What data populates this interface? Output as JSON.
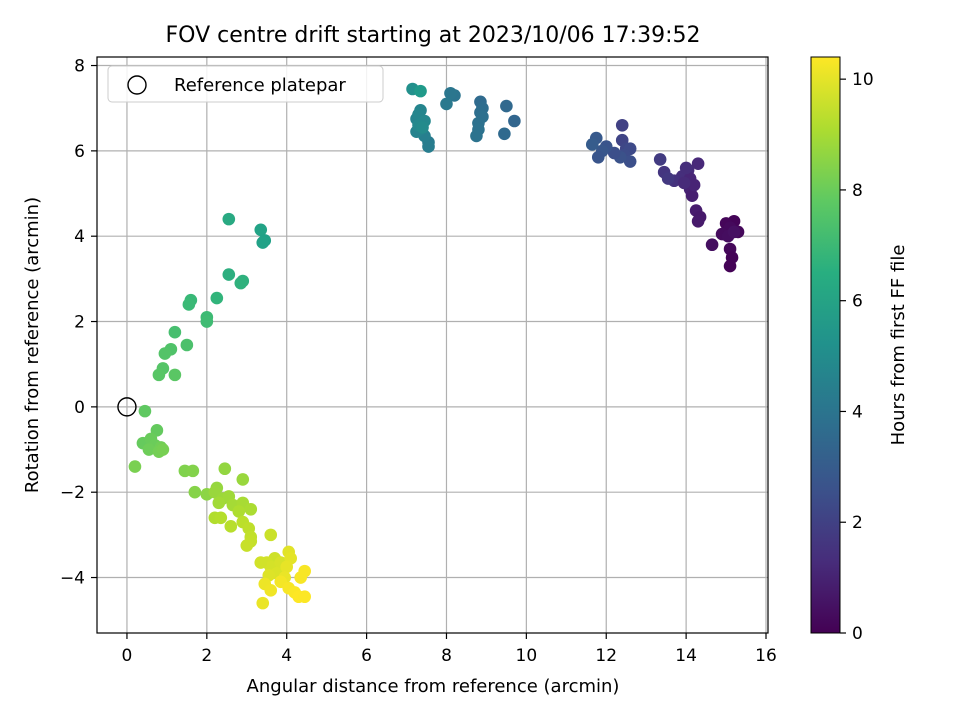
{
  "chart_data": {
    "type": "scatter",
    "title": "FOV centre drift starting at 2023/10/06 17:39:52",
    "xlabel": "Angular distance from reference (arcmin)",
    "ylabel": "Rotation from reference (arcmin)",
    "xlim": [
      -0.75,
      16.05
    ],
    "ylim": [
      -5.3,
      8.2
    ],
    "xticks": [
      0,
      2,
      4,
      6,
      8,
      10,
      12,
      14,
      16
    ],
    "yticks": [
      -4,
      -2,
      0,
      2,
      4,
      6,
      8
    ],
    "grid": true,
    "legend": {
      "location": "top-left",
      "entries": [
        "Reference platepar"
      ]
    },
    "reference_point": {
      "name": "Reference platepar",
      "x": 0,
      "y": 0
    },
    "colorbar": {
      "label": "Hours from first FF file",
      "colormap": "viridis",
      "range": [
        0,
        10.4
      ],
      "ticks": [
        0,
        2,
        4,
        6,
        8,
        10
      ]
    },
    "series": [
      {
        "colored_by": "Hours from first FF file",
        "points": [
          {
            "x": 15.2,
            "y": 4.35,
            "h": 0.1
          },
          {
            "x": 15.0,
            "y": 4.3,
            "h": 0.15
          },
          {
            "x": 15.3,
            "y": 4.1,
            "h": 0.2
          },
          {
            "x": 15.1,
            "y": 4.2,
            "h": 0.25
          },
          {
            "x": 14.9,
            "y": 4.05,
            "h": 0.3
          },
          {
            "x": 15.05,
            "y": 4.0,
            "h": 0.35
          },
          {
            "x": 14.65,
            "y": 3.8,
            "h": 0.4
          },
          {
            "x": 15.1,
            "y": 3.7,
            "h": 0.2
          },
          {
            "x": 15.15,
            "y": 3.5,
            "h": 0.1
          },
          {
            "x": 15.1,
            "y": 3.3,
            "h": 0.05
          },
          {
            "x": 15.2,
            "y": 4.1,
            "h": 0.45
          },
          {
            "x": 14.3,
            "y": 5.7,
            "h": 1.2
          },
          {
            "x": 14.05,
            "y": 5.55,
            "h": 1.3
          },
          {
            "x": 13.9,
            "y": 5.4,
            "h": 1.4
          },
          {
            "x": 13.7,
            "y": 5.3,
            "h": 1.5
          },
          {
            "x": 14.1,
            "y": 5.35,
            "h": 1.1
          },
          {
            "x": 13.45,
            "y": 5.5,
            "h": 1.6
          },
          {
            "x": 13.55,
            "y": 5.35,
            "h": 1.7
          },
          {
            "x": 13.35,
            "y": 5.8,
            "h": 1.8
          },
          {
            "x": 14.1,
            "y": 5.1,
            "h": 1.0
          },
          {
            "x": 14.15,
            "y": 4.95,
            "h": 0.9
          },
          {
            "x": 14.2,
            "y": 5.2,
            "h": 1.05
          },
          {
            "x": 13.95,
            "y": 5.25,
            "h": 1.25
          },
          {
            "x": 14.25,
            "y": 4.6,
            "h": 0.8
          },
          {
            "x": 14.35,
            "y": 4.45,
            "h": 0.7
          },
          {
            "x": 14.3,
            "y": 4.35,
            "h": 0.75
          },
          {
            "x": 14.0,
            "y": 5.6,
            "h": 1.35
          },
          {
            "x": 12.4,
            "y": 6.6,
            "h": 2.0
          },
          {
            "x": 12.4,
            "y": 6.25,
            "h": 2.1
          },
          {
            "x": 12.5,
            "y": 6.05,
            "h": 2.2
          },
          {
            "x": 12.6,
            "y": 6.05,
            "h": 2.3
          },
          {
            "x": 12.45,
            "y": 5.9,
            "h": 2.4
          },
          {
            "x": 12.6,
            "y": 5.75,
            "h": 2.5
          },
          {
            "x": 12.35,
            "y": 5.85,
            "h": 2.6
          },
          {
            "x": 12.2,
            "y": 5.95,
            "h": 2.5
          },
          {
            "x": 12.0,
            "y": 6.1,
            "h": 2.7
          },
          {
            "x": 11.9,
            "y": 6.0,
            "h": 2.8
          },
          {
            "x": 11.75,
            "y": 6.3,
            "h": 2.9
          },
          {
            "x": 11.65,
            "y": 6.15,
            "h": 3.0
          },
          {
            "x": 11.8,
            "y": 5.85,
            "h": 2.75
          },
          {
            "x": 9.7,
            "y": 6.7,
            "h": 3.4
          },
          {
            "x": 9.5,
            "y": 7.05,
            "h": 3.5
          },
          {
            "x": 9.45,
            "y": 6.4,
            "h": 3.55
          },
          {
            "x": 8.85,
            "y": 7.15,
            "h": 3.6
          },
          {
            "x": 8.9,
            "y": 7.0,
            "h": 3.7
          },
          {
            "x": 8.85,
            "y": 6.9,
            "h": 3.75
          },
          {
            "x": 8.9,
            "y": 6.8,
            "h": 3.8
          },
          {
            "x": 8.8,
            "y": 6.65,
            "h": 3.85
          },
          {
            "x": 8.8,
            "y": 6.5,
            "h": 3.9
          },
          {
            "x": 8.75,
            "y": 6.35,
            "h": 3.95
          },
          {
            "x": 8.2,
            "y": 7.3,
            "h": 4.0
          },
          {
            "x": 8.1,
            "y": 7.35,
            "h": 4.1
          },
          {
            "x": 8.0,
            "y": 7.1,
            "h": 4.2
          },
          {
            "x": 7.55,
            "y": 6.2,
            "h": 4.3
          },
          {
            "x": 7.55,
            "y": 6.1,
            "h": 4.4
          },
          {
            "x": 7.45,
            "y": 6.35,
            "h": 4.5
          },
          {
            "x": 7.35,
            "y": 6.5,
            "h": 4.6
          },
          {
            "x": 7.25,
            "y": 6.45,
            "h": 4.65
          },
          {
            "x": 7.25,
            "y": 6.75,
            "h": 4.7
          },
          {
            "x": 7.35,
            "y": 6.95,
            "h": 4.75
          },
          {
            "x": 7.3,
            "y": 6.85,
            "h": 4.8
          },
          {
            "x": 7.45,
            "y": 6.7,
            "h": 4.85
          },
          {
            "x": 7.3,
            "y": 6.6,
            "h": 4.9
          },
          {
            "x": 7.4,
            "y": 6.55,
            "h": 5.0
          },
          {
            "x": 7.15,
            "y": 7.45,
            "h": 5.2
          },
          {
            "x": 7.35,
            "y": 7.4,
            "h": 5.6
          },
          {
            "x": 2.55,
            "y": 4.4,
            "h": 6.3
          },
          {
            "x": 3.35,
            "y": 4.15,
            "h": 6.0
          },
          {
            "x": 3.45,
            "y": 3.9,
            "h": 5.9
          },
          {
            "x": 3.4,
            "y": 3.85,
            "h": 5.95
          },
          {
            "x": 2.55,
            "y": 3.1,
            "h": 6.5
          },
          {
            "x": 2.9,
            "y": 2.95,
            "h": 6.6
          },
          {
            "x": 2.85,
            "y": 2.9,
            "h": 6.65
          },
          {
            "x": 2.25,
            "y": 2.55,
            "h": 6.8
          },
          {
            "x": 1.6,
            "y": 2.5,
            "h": 7.0
          },
          {
            "x": 1.55,
            "y": 2.4,
            "h": 7.05
          },
          {
            "x": 2.0,
            "y": 2.1,
            "h": 7.1
          },
          {
            "x": 2.0,
            "y": 2.0,
            "h": 7.15
          },
          {
            "x": 1.2,
            "y": 1.75,
            "h": 7.3
          },
          {
            "x": 1.5,
            "y": 1.45,
            "h": 7.4
          },
          {
            "x": 1.1,
            "y": 1.35,
            "h": 7.5
          },
          {
            "x": 0.95,
            "y": 1.25,
            "h": 7.55
          },
          {
            "x": 0.9,
            "y": 0.9,
            "h": 7.6
          },
          {
            "x": 0.8,
            "y": 0.75,
            "h": 7.65
          },
          {
            "x": 1.2,
            "y": 0.75,
            "h": 7.7
          },
          {
            "x": 0.45,
            "y": -0.1,
            "h": 7.8
          },
          {
            "x": 0.75,
            "y": -0.55,
            "h": 7.9
          },
          {
            "x": 0.4,
            "y": -0.85,
            "h": 7.95
          },
          {
            "x": 0.6,
            "y": -0.75,
            "h": 8.0
          },
          {
            "x": 0.7,
            "y": -0.9,
            "h": 8.05
          },
          {
            "x": 0.55,
            "y": -1.0,
            "h": 8.1
          },
          {
            "x": 0.85,
            "y": -0.95,
            "h": 8.15
          },
          {
            "x": 0.8,
            "y": -1.05,
            "h": 8.2
          },
          {
            "x": 0.9,
            "y": -1.0,
            "h": 8.25
          },
          {
            "x": 0.2,
            "y": -1.4,
            "h": 8.3
          },
          {
            "x": 1.45,
            "y": -1.5,
            "h": 8.4
          },
          {
            "x": 1.65,
            "y": -1.5,
            "h": 8.45
          },
          {
            "x": 1.7,
            "y": -2.0,
            "h": 8.5
          },
          {
            "x": 2.0,
            "y": -2.05,
            "h": 8.6
          },
          {
            "x": 2.45,
            "y": -1.45,
            "h": 8.7
          },
          {
            "x": 2.25,
            "y": -1.9,
            "h": 8.75
          },
          {
            "x": 2.2,
            "y": -2.0,
            "h": 8.8
          },
          {
            "x": 2.4,
            "y": -2.15,
            "h": 8.85
          },
          {
            "x": 2.55,
            "y": -2.1,
            "h": 8.9
          },
          {
            "x": 2.3,
            "y": -2.25,
            "h": 8.95
          },
          {
            "x": 2.65,
            "y": -2.3,
            "h": 9.0
          },
          {
            "x": 2.9,
            "y": -1.7,
            "h": 8.8
          },
          {
            "x": 2.9,
            "y": -2.25,
            "h": 9.05
          },
          {
            "x": 3.1,
            "y": -2.4,
            "h": 9.1
          },
          {
            "x": 2.8,
            "y": -2.45,
            "h": 9.15
          },
          {
            "x": 2.2,
            "y": -2.6,
            "h": 9.2
          },
          {
            "x": 2.35,
            "y": -2.6,
            "h": 9.25
          },
          {
            "x": 2.6,
            "y": -2.8,
            "h": 9.3
          },
          {
            "x": 2.9,
            "y": -2.7,
            "h": 9.35
          },
          {
            "x": 3.05,
            "y": -2.85,
            "h": 9.4
          },
          {
            "x": 3.1,
            "y": -3.05,
            "h": 9.45
          },
          {
            "x": 3.1,
            "y": -3.15,
            "h": 9.5
          },
          {
            "x": 3.0,
            "y": -3.25,
            "h": 9.55
          },
          {
            "x": 3.6,
            "y": -3.0,
            "h": 9.6
          },
          {
            "x": 3.7,
            "y": -3.55,
            "h": 9.65
          },
          {
            "x": 3.5,
            "y": -3.65,
            "h": 9.7
          },
          {
            "x": 3.6,
            "y": -3.75,
            "h": 9.75
          },
          {
            "x": 3.85,
            "y": -3.65,
            "h": 9.8
          },
          {
            "x": 3.75,
            "y": -3.9,
            "h": 9.85
          },
          {
            "x": 3.55,
            "y": -3.95,
            "h": 9.9
          },
          {
            "x": 4.05,
            "y": -3.4,
            "h": 9.95
          },
          {
            "x": 4.1,
            "y": -3.55,
            "h": 10.0
          },
          {
            "x": 4.0,
            "y": -3.75,
            "h": 10.05
          },
          {
            "x": 3.95,
            "y": -4.0,
            "h": 10.1
          },
          {
            "x": 3.45,
            "y": -4.15,
            "h": 10.15
          },
          {
            "x": 3.6,
            "y": -4.3,
            "h": 10.2
          },
          {
            "x": 3.85,
            "y": -4.1,
            "h": 10.25
          },
          {
            "x": 4.05,
            "y": -4.25,
            "h": 10.3
          },
          {
            "x": 4.2,
            "y": -4.35,
            "h": 10.35
          },
          {
            "x": 4.3,
            "y": -4.45,
            "h": 10.4
          },
          {
            "x": 4.45,
            "y": -4.45,
            "h": 10.38
          },
          {
            "x": 4.35,
            "y": -4.0,
            "h": 10.3
          },
          {
            "x": 4.45,
            "y": -3.85,
            "h": 10.32
          },
          {
            "x": 3.4,
            "y": -4.6,
            "h": 10.1
          },
          {
            "x": 3.35,
            "y": -3.65,
            "h": 9.7
          }
        ]
      }
    ]
  }
}
